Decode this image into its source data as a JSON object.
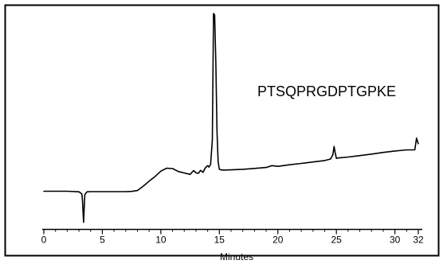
{
  "chart_data": {
    "type": "line",
    "title": "",
    "annotation": "PTSQPRGDPTGPKE",
    "xlabel": "Minutes",
    "ylabel": "",
    "xlim": [
      0,
      32
    ],
    "x_ticks": [
      0,
      5,
      10,
      15,
      20,
      25,
      30,
      32
    ],
    "x_tick_labels": [
      "0",
      "5",
      "10",
      "15",
      "20",
      "25",
      "30",
      "32"
    ],
    "y_axis_shown": false,
    "grid": false,
    "legend": "none",
    "line_color": "#000000",
    "series": [
      {
        "x": [
          0,
          1,
          2,
          3,
          3.25,
          3.3,
          3.4,
          3.5,
          3.6,
          3.7,
          4,
          5,
          6,
          7,
          7.5,
          8,
          8.5,
          9,
          9.5,
          10,
          10.5,
          11,
          11.5,
          12,
          12.5,
          12.8,
          13,
          13.2,
          13.4,
          13.6,
          13.8,
          14,
          14.1,
          14.25,
          14.4,
          14.5,
          14.6,
          14.7,
          14.8,
          14.9,
          15,
          15.2,
          15.5,
          16,
          17,
          18,
          19,
          19.5,
          20,
          21,
          22,
          23,
          24,
          24.5,
          24.7,
          24.8,
          24.9,
          25,
          25.2,
          26,
          27,
          28,
          29,
          30,
          31,
          31.7,
          31.85,
          32
        ],
        "y": [
          0,
          0,
          0,
          -0.3,
          -1.5,
          -5,
          -17,
          -2,
          -1,
          -0.3,
          -0.2,
          -0.2,
          -0.2,
          -0.2,
          -0.1,
          0.4,
          2.8,
          5.5,
          8,
          11,
          12.6,
          12.4,
          10.8,
          10,
          9.2,
          11.3,
          10.1,
          9.8,
          11.4,
          10.3,
          12.8,
          14,
          13.2,
          14.6,
          28,
          97.2,
          96.3,
          70,
          32,
          16,
          12,
          11.6,
          11.6,
          11.7,
          12,
          12.5,
          13,
          14,
          13.6,
          14.5,
          15.2,
          16,
          16.8,
          17.6,
          20,
          24.5,
          21,
          18,
          18.2,
          18.7,
          19.5,
          20.3,
          21.2,
          22,
          22.6,
          22.6,
          29,
          26
        ]
      }
    ]
  }
}
